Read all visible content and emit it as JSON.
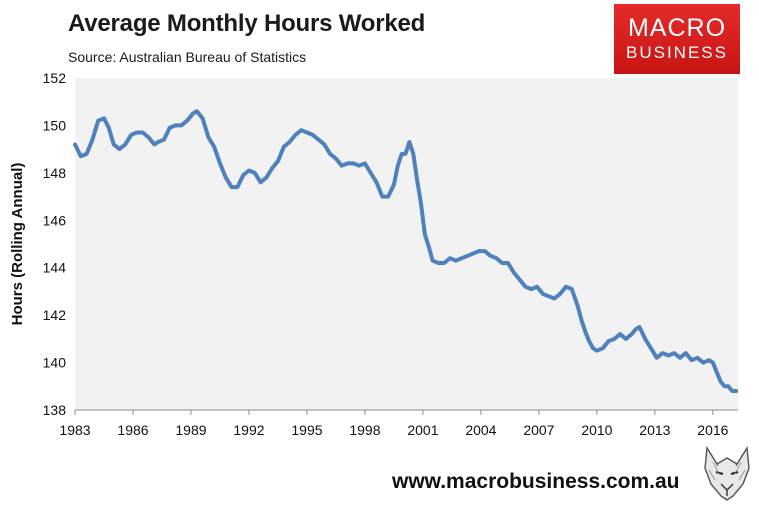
{
  "header": {
    "title": "Average Monthly Hours Worked",
    "subtitle": "Source: Australian Bureau of Statistics"
  },
  "logo": {
    "line1": "MACRO",
    "line2": "BUSINESS",
    "color": "#d81e1e"
  },
  "footer": {
    "url": "www.macrobusiness.com.au"
  },
  "colors": {
    "line": "#4f81bd",
    "plot_bg": "#f2f2f2"
  },
  "chart_data": {
    "type": "line",
    "title": "Average Monthly Hours Worked",
    "subtitle": "Source: Australian Bureau of Statistics",
    "xlabel": "",
    "ylabel": "Hours (Rolling Annual)",
    "xlim": [
      1983,
      2017.3
    ],
    "ylim": [
      138,
      152
    ],
    "grid": false,
    "legend": "none",
    "x_ticks": [
      "1983",
      "1986",
      "1989",
      "1992",
      "1995",
      "1998",
      "2001",
      "2004",
      "2007",
      "2010",
      "2013",
      "2016"
    ],
    "y_ticks": [
      "138",
      "140",
      "142",
      "144",
      "146",
      "148",
      "150",
      "152"
    ],
    "series": [
      {
        "x": [
          1983.0,
          1983.3,
          1983.6,
          1983.9,
          1984.2,
          1984.5,
          1984.75,
          1985.0,
          1985.3,
          1985.6,
          1985.9,
          1986.2,
          1986.5,
          1986.8,
          1987.1,
          1987.3,
          1987.6,
          1987.9,
          1988.2,
          1988.5,
          1988.8,
          1989.1,
          1989.3,
          1989.6,
          1989.9,
          1990.2,
          1990.5,
          1990.8,
          1991.1,
          1991.4,
          1991.7,
          1992.0,
          1992.3,
          1992.6,
          1992.9,
          1993.2,
          1993.5,
          1993.8,
          1994.1,
          1994.4,
          1994.7,
          1995.0,
          1995.3,
          1995.6,
          1995.9,
          1996.2,
          1996.5,
          1996.8,
          1997.1,
          1997.4,
          1997.7,
          1998.0,
          1998.3,
          1998.6,
          1998.9,
          1999.2,
          1999.5,
          1999.7,
          1999.9,
          2000.1,
          2000.3,
          2000.5,
          2000.7,
          2000.9,
          2001.1,
          2001.3,
          2001.5,
          2001.8,
          2002.1,
          2002.4,
          2002.7,
          2003.0,
          2003.3,
          2003.6,
          2003.9,
          2004.2,
          2004.5,
          2004.8,
          2005.1,
          2005.4,
          2005.7,
          2006.0,
          2006.3,
          2006.6,
          2006.9,
          2007.2,
          2007.5,
          2007.8,
          2008.1,
          2008.4,
          2008.7,
          2009.0,
          2009.2,
          2009.4,
          2009.6,
          2009.8,
          2010.0,
          2010.3,
          2010.6,
          2010.9,
          2011.2,
          2011.5,
          2011.8,
          2012.0,
          2012.2,
          2012.5,
          2012.8,
          2013.1,
          2013.4,
          2013.7,
          2014.0,
          2014.3,
          2014.6,
          2014.9,
          2015.2,
          2015.5,
          2015.8,
          2016.0,
          2016.2,
          2016.4,
          2016.6,
          2016.8,
          2017.0,
          2017.2
        ],
        "values": [
          149.2,
          148.7,
          148.8,
          149.4,
          150.2,
          150.3,
          149.9,
          149.2,
          149.0,
          149.2,
          149.6,
          149.7,
          149.7,
          149.5,
          149.2,
          149.3,
          149.4,
          149.9,
          150.0,
          150.0,
          150.2,
          150.5,
          150.6,
          150.3,
          149.5,
          149.1,
          148.4,
          147.8,
          147.4,
          147.4,
          147.9,
          148.1,
          148.0,
          147.6,
          147.8,
          148.2,
          148.5,
          149.1,
          149.3,
          149.6,
          149.8,
          149.7,
          149.6,
          149.4,
          149.2,
          148.8,
          148.6,
          148.3,
          148.4,
          148.4,
          148.3,
          148.4,
          148.0,
          147.6,
          147.0,
          147.0,
          147.5,
          148.3,
          148.8,
          148.8,
          149.3,
          148.8,
          147.7,
          146.7,
          145.4,
          144.9,
          144.3,
          144.2,
          144.2,
          144.4,
          144.3,
          144.4,
          144.5,
          144.6,
          144.7,
          144.7,
          144.5,
          144.4,
          144.2,
          144.2,
          143.8,
          143.5,
          143.2,
          143.1,
          143.2,
          142.9,
          142.8,
          142.7,
          142.9,
          143.2,
          143.1,
          142.4,
          141.8,
          141.3,
          140.9,
          140.6,
          140.5,
          140.6,
          140.9,
          141.0,
          141.2,
          141.0,
          141.2,
          141.4,
          141.5,
          141.0,
          140.6,
          140.2,
          140.4,
          140.3,
          140.4,
          140.2,
          140.4,
          140.1,
          140.2,
          140.0,
          140.1,
          140.0,
          139.6,
          139.2,
          139.0,
          139.0,
          138.8,
          138.8
        ]
      }
    ]
  }
}
